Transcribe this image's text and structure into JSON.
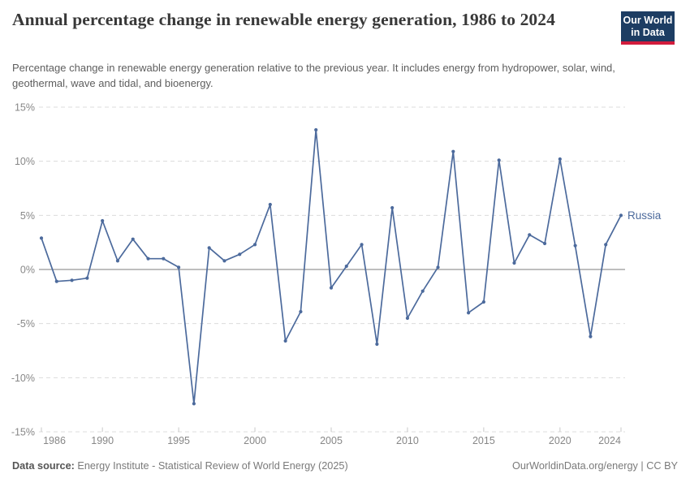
{
  "header": {
    "title": "Annual percentage change in renewable energy generation, 1986 to 2024",
    "subtitle": "Percentage change in renewable energy generation relative to the previous year. It includes energy from hydropower, solar, wind, geothermal, wave and tidal, and bioenergy.",
    "logo": {
      "line1": "Our World",
      "line2": "in Data"
    }
  },
  "chart_data": {
    "type": "line",
    "title": "Annual percentage change in renewable energy generation, 1986 to 2024",
    "series": [
      {
        "name": "Russia",
        "x": [
          1986,
          1987,
          1988,
          1989,
          1990,
          1991,
          1992,
          1993,
          1994,
          1995,
          1996,
          1997,
          1998,
          1999,
          2000,
          2001,
          2002,
          2003,
          2004,
          2005,
          2006,
          2007,
          2008,
          2009,
          2010,
          2011,
          2012,
          2013,
          2014,
          2015,
          2016,
          2017,
          2018,
          2019,
          2020,
          2021,
          2022,
          2023,
          2024
        ],
        "values": [
          2.9,
          -1.1,
          -1.0,
          -0.8,
          4.5,
          0.8,
          2.8,
          1.0,
          1.0,
          0.2,
          -12.4,
          2.0,
          0.8,
          1.4,
          2.3,
          6.0,
          -6.6,
          -3.9,
          12.9,
          -1.7,
          0.3,
          2.3,
          -6.9,
          5.7,
          -4.5,
          -2.0,
          0.2,
          10.9,
          -4.0,
          -3.0,
          10.1,
          0.6,
          3.2,
          2.4,
          10.2,
          2.2,
          -6.2,
          2.3,
          5.0
        ]
      }
    ],
    "entity_label": "Russia",
    "ylim": [
      -15,
      15
    ],
    "yticks": [
      15,
      10,
      5,
      0,
      -5,
      -10,
      -15
    ],
    "ytick_suffix": "%",
    "xticks": [
      1986,
      1990,
      1995,
      2000,
      2005,
      2010,
      2015,
      2020,
      2024
    ],
    "grid": true,
    "legend_position": "right-of-line-end",
    "colors": {
      "line": "#4c6a9c",
      "gridline": "#dcdcdc",
      "zero_line": "#b5b5b5",
      "tick_label": "#878787",
      "axis_tick": "#c9c9c9"
    }
  },
  "footer": {
    "source_label": "Data source:",
    "source_text": " Energy Institute - Statistical Review of World Energy (2025)",
    "link_text": "OurWorldinData.org/energy | CC BY"
  }
}
